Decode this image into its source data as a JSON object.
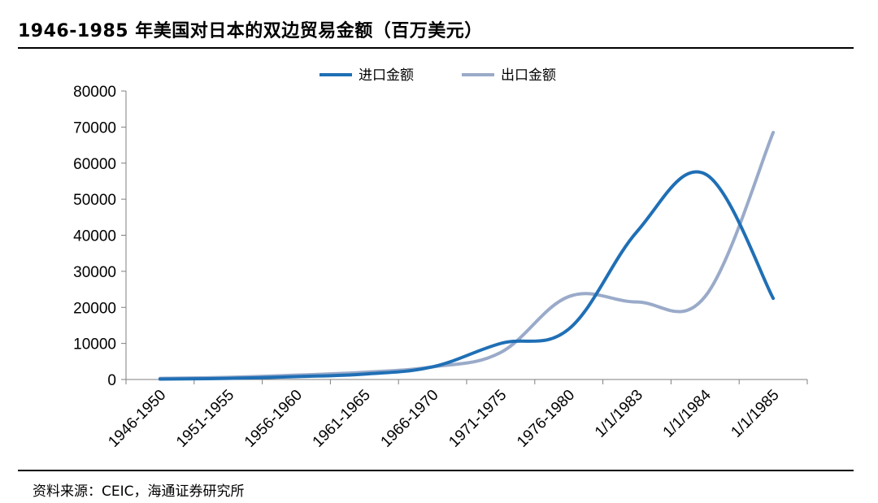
{
  "header": {
    "title": "1946-1985 年美国对日本的双边贸易金额（百万美元）"
  },
  "footer": {
    "source": "资料来源：CEIC，海通证券研究所"
  },
  "chart_data": {
    "type": "line",
    "title": "1946-1985 年美国对日本的双边贸易金额（百万美元）",
    "categories": [
      "1946-1950",
      "1951-1955",
      "1956-1960",
      "1961-1965",
      "1966-1970",
      "1971-1975",
      "1976-1980",
      "1/1/1983",
      "1/1/1984",
      "1/1/1985"
    ],
    "series": [
      {
        "name": "进口金额",
        "color": "#1f6fb5",
        "values": [
          100,
          300,
          800,
          1500,
          3500,
          10000,
          14000,
          41000,
          57000,
          22500
        ]
      },
      {
        "name": "出口金额",
        "color": "#9aaac9",
        "values": [
          300,
          600,
          1200,
          2000,
          3500,
          7500,
          23000,
          21500,
          23000,
          68500
        ]
      }
    ],
    "yticks": [
      "0",
      "10000",
      "20000",
      "30000",
      "40000",
      "50000",
      "60000",
      "70000",
      "80000"
    ],
    "ylim": [
      0,
      80000
    ],
    "xlabel": "",
    "ylabel": "",
    "legend": "top-center",
    "grid": false,
    "smooth": true
  }
}
